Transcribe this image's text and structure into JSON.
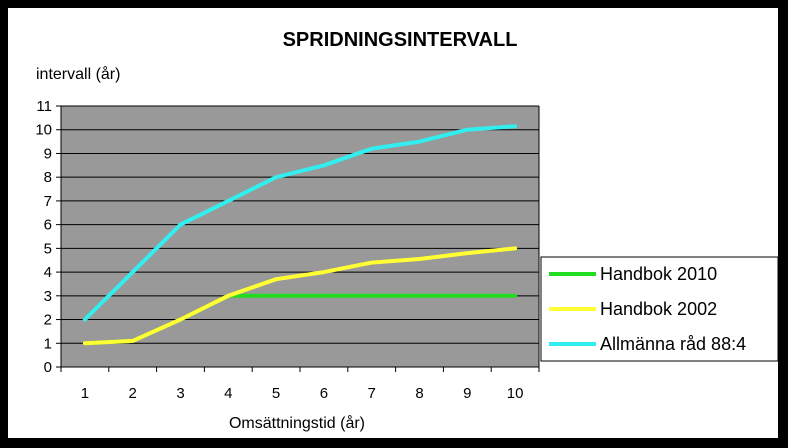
{
  "chart_data": {
    "type": "line",
    "title": "SPRIDNINGSINTERVALL",
    "xlabel": "Omsättningstid (år)",
    "ylabel": "intervall (år)",
    "x": [
      1,
      2,
      3,
      4,
      5,
      6,
      7,
      8,
      9,
      10
    ],
    "ylim": [
      0,
      11
    ],
    "yticks": [
      0,
      1,
      2,
      3,
      4,
      5,
      6,
      7,
      8,
      9,
      10,
      11
    ],
    "grid": true,
    "legend_position": "right",
    "plot_background": "#999999",
    "series": [
      {
        "name": "Handbok 2010",
        "color": "#22dd22",
        "x": [
          1,
          2,
          3,
          4,
          5,
          6,
          7,
          8,
          9,
          10
        ],
        "values": [
          1,
          1.1,
          2,
          3,
          3,
          3,
          3,
          3,
          3,
          3
        ]
      },
      {
        "name": "Handbok 2002",
        "color": "#ffff33",
        "x": [
          1,
          2,
          3,
          4,
          5,
          6,
          7,
          8,
          9,
          10
        ],
        "values": [
          1,
          1.1,
          2,
          3,
          3.7,
          4,
          4.4,
          4.55,
          4.8,
          5
        ]
      },
      {
        "name": "Allmänna råd 88:4",
        "color": "#33eeee",
        "x": [
          1,
          2,
          3,
          4,
          5,
          6,
          7,
          8,
          9,
          10
        ],
        "values": [
          2,
          4,
          6,
          7,
          8,
          8.5,
          9.2,
          9.5,
          10,
          10.15
        ]
      }
    ]
  }
}
